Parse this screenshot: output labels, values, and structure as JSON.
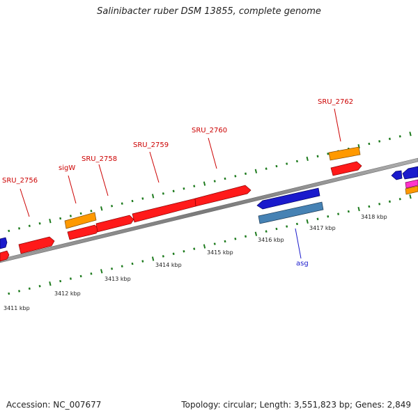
{
  "title": "Salinibacter ruber DSM 13855, complete genome",
  "accession": "Accession: NC_007677",
  "summary": "Topology: circular; Length: 3,551,823 bp; Genes: 2,849",
  "colors": {
    "forward_cds": "#ff1a1a",
    "reverse_cds": "#1a1aff",
    "other_orange": "#ff9900",
    "steelblue": "#4682b4",
    "magenta": "#ff33cc",
    "tick_green": "#1e7b1e",
    "label_red": "#cc0000",
    "label_blue": "#1a1acc",
    "backbone": "#8c8c8c"
  },
  "kbp_labels": [
    "3411 kbp",
    "3412 kbp",
    "3413 kbp",
    "3414 kbp",
    "3415 kbp",
    "3416 kbp",
    "3417 kbp",
    "3418 kbp"
  ],
  "gene_labels": [
    "SRU_2756",
    "sigW",
    "SRU_2758",
    "SRU_2759",
    "SRU_2760",
    "SRU_2762",
    "asg"
  ]
}
